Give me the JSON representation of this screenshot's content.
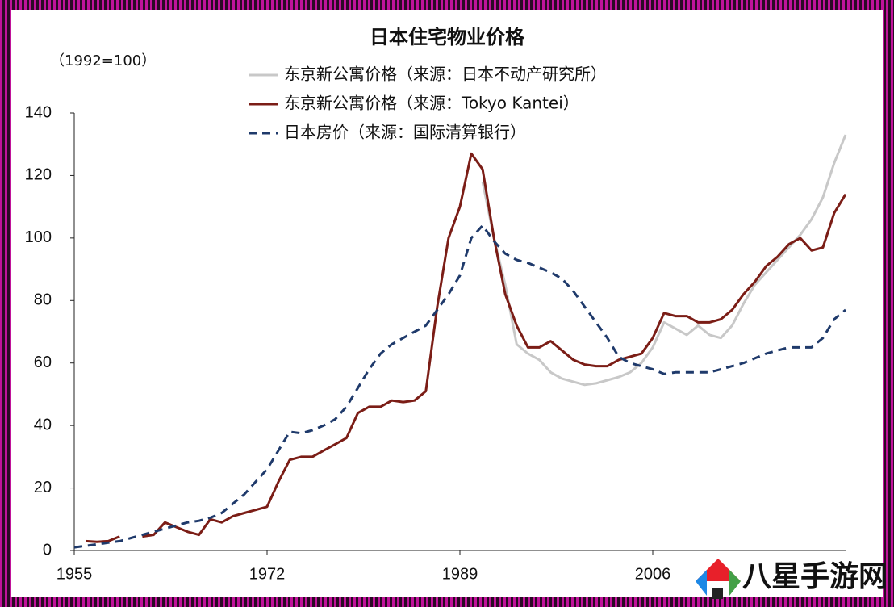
{
  "watermark": "八星手游网",
  "chart_data": {
    "type": "line",
    "title": "日本住宅物业价格",
    "ylabel": "（1992=100）",
    "x": [
      1955,
      1956,
      1957,
      1958,
      1959,
      1960,
      1961,
      1962,
      1963,
      1964,
      1965,
      1966,
      1967,
      1968,
      1969,
      1970,
      1971,
      1972,
      1973,
      1974,
      1975,
      1976,
      1977,
      1978,
      1979,
      1980,
      1981,
      1982,
      1983,
      1984,
      1985,
      1986,
      1987,
      1988,
      1989,
      1990,
      1991,
      1992,
      1993,
      1994,
      1995,
      1996,
      1997,
      1998,
      1999,
      2000,
      2001,
      2002,
      2003,
      2004,
      2005,
      2006,
      2007,
      2008,
      2009,
      2010,
      2011,
      2012,
      2013,
      2014,
      2015,
      2016,
      2017,
      2018,
      2019,
      2020,
      2021,
      2022,
      2023
    ],
    "series": [
      {
        "name": "东京新公寓价格（来源：日本不动产研究所）",
        "color": "#c8c8c8",
        "dash": false,
        "values": [
          null,
          null,
          null,
          null,
          null,
          null,
          null,
          null,
          null,
          null,
          null,
          null,
          null,
          null,
          null,
          null,
          null,
          null,
          null,
          null,
          null,
          null,
          null,
          null,
          null,
          null,
          null,
          null,
          null,
          null,
          null,
          null,
          null,
          null,
          null,
          null,
          118,
          100,
          85,
          66,
          63,
          61,
          57,
          55,
          54,
          53,
          53.5,
          54.5,
          55.5,
          57,
          60,
          65,
          73,
          71,
          69,
          72,
          69,
          68,
          72,
          79,
          85,
          89,
          93,
          97,
          101,
          106,
          113,
          124,
          133
        ]
      },
      {
        "name": "东京新公寓价格（来源：Tokyo Kantei）",
        "color": "#7b1d16",
        "dash": false,
        "values": [
          null,
          3,
          2.8,
          3,
          4.5,
          null,
          4.5,
          5,
          9,
          7.5,
          6,
          5,
          10,
          9,
          11,
          12,
          13,
          14,
          22,
          29,
          30,
          30,
          32,
          34,
          36,
          44,
          46,
          46,
          48,
          47.5,
          48,
          51,
          78,
          100,
          110,
          127,
          122,
          100,
          82,
          72,
          65,
          65,
          67,
          64,
          61,
          59.5,
          59,
          59,
          61,
          62,
          63,
          68,
          76,
          75,
          75,
          73,
          73,
          74,
          77,
          82,
          86,
          91,
          94,
          98,
          100,
          96,
          97,
          108,
          114
        ]
      },
      {
        "name": "日本房价（来源：国际清算银行）",
        "color": "#1f3a6b",
        "dash": true,
        "values": [
          1,
          1.5,
          2,
          2.5,
          3,
          4,
          5,
          6,
          7,
          8,
          9,
          9.5,
          10.5,
          12,
          15,
          18,
          22,
          26,
          32,
          38,
          37.5,
          38.5,
          40,
          42,
          46,
          52,
          58,
          63,
          66,
          68,
          70,
          72,
          77,
          82,
          88,
          100,
          104,
          99,
          95,
          93,
          92,
          90.5,
          89,
          87,
          83,
          78,
          73,
          68,
          62,
          60,
          59,
          58,
          56.5,
          57,
          57,
          57,
          57,
          58,
          59,
          60,
          61.5,
          63,
          64,
          65,
          65,
          65,
          68,
          74,
          77
        ]
      }
    ],
    "xlim": [
      1955,
      2023
    ],
    "xticks": [
      1955,
      1972,
      1989,
      2006
    ],
    "ylim": [
      0,
      140
    ],
    "yticks": [
      0,
      20,
      40,
      60,
      80,
      100,
      120,
      140
    ],
    "grid": false
  }
}
